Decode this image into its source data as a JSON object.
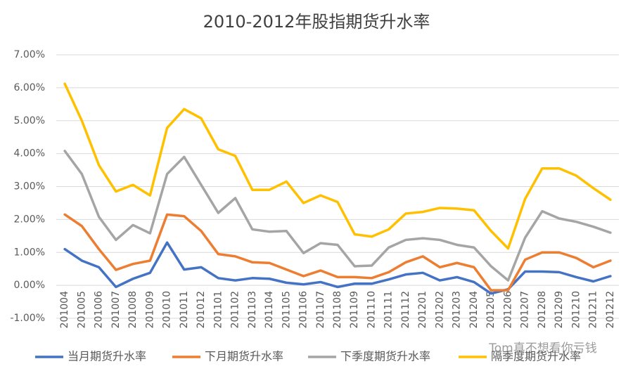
{
  "chart_data": {
    "type": "line",
    "title": "2010-2012年股指期货升水率",
    "categories": [
      "201004",
      "201005",
      "201006",
      "201007",
      "201008",
      "201009",
      "201010",
      "201011",
      "201012",
      "201101",
      "201102",
      "201103",
      "201104",
      "201105",
      "201106",
      "201107",
      "201108",
      "201109",
      "201110",
      "201111",
      "201112",
      "201201",
      "201202",
      "201203",
      "201204",
      "201205",
      "201206",
      "201207",
      "201208",
      "201209",
      "201210",
      "201211",
      "201212"
    ],
    "series": [
      {
        "name": "当月期货升水率",
        "color": "#4472c4",
        "values": [
          1.1,
          0.75,
          0.55,
          -0.05,
          0.2,
          0.38,
          1.3,
          0.48,
          0.55,
          0.22,
          0.15,
          0.22,
          0.2,
          0.08,
          0.03,
          0.1,
          -0.05,
          0.05,
          0.05,
          0.18,
          0.33,
          0.38,
          0.15,
          0.25,
          0.1,
          -0.25,
          -0.12,
          0.42,
          0.42,
          0.4,
          0.25,
          0.12,
          0.28
        ]
      },
      {
        "name": "下月期货升水率",
        "color": "#ed7d31",
        "values": [
          2.15,
          1.8,
          1.1,
          0.47,
          0.65,
          0.75,
          2.15,
          2.1,
          1.65,
          0.95,
          0.88,
          0.7,
          0.68,
          0.48,
          0.28,
          0.45,
          0.25,
          0.25,
          0.22,
          0.4,
          0.7,
          0.88,
          0.55,
          0.68,
          0.55,
          -0.15,
          -0.15,
          0.78,
          1.0,
          1.0,
          0.83,
          0.55,
          0.75
        ]
      },
      {
        "name": "下季度期货升水率",
        "color": "#a5a5a5",
        "values": [
          4.08,
          3.38,
          2.08,
          1.38,
          1.83,
          1.58,
          3.38,
          3.9,
          3.05,
          2.2,
          2.65,
          1.7,
          1.63,
          1.65,
          0.98,
          1.28,
          1.23,
          0.58,
          0.6,
          1.15,
          1.38,
          1.43,
          1.38,
          1.23,
          1.15,
          0.58,
          0.15,
          1.45,
          2.25,
          2.03,
          1.93,
          1.78,
          1.6
        ]
      },
      {
        "name": "隔季度期货升水率",
        "color": "#ffc000",
        "values": [
          6.12,
          5.0,
          3.65,
          2.85,
          3.05,
          2.73,
          4.78,
          5.35,
          5.07,
          4.13,
          3.93,
          2.9,
          2.9,
          3.15,
          2.5,
          2.73,
          2.53,
          1.55,
          1.48,
          1.7,
          2.18,
          2.23,
          2.35,
          2.33,
          2.28,
          1.65,
          1.12,
          2.63,
          3.55,
          3.55,
          3.33,
          2.95,
          2.6
        ]
      }
    ],
    "ylim": [
      -1,
      7
    ],
    "yticks": [
      {
        "value": -1,
        "label": "-1.00%"
      },
      {
        "value": 0,
        "label": "0.00%"
      },
      {
        "value": 1,
        "label": "1.00%"
      },
      {
        "value": 2,
        "label": "2.00%"
      },
      {
        "value": 3,
        "label": "3.00%"
      },
      {
        "value": 4,
        "label": "4.00%"
      },
      {
        "value": 5,
        "label": "5.00%"
      },
      {
        "value": 6,
        "label": "6.00%"
      },
      {
        "value": 7,
        "label": "7.00%"
      }
    ],
    "grid": true,
    "legend": "bottom",
    "watermark": "Tom真不想看你亏钱"
  }
}
